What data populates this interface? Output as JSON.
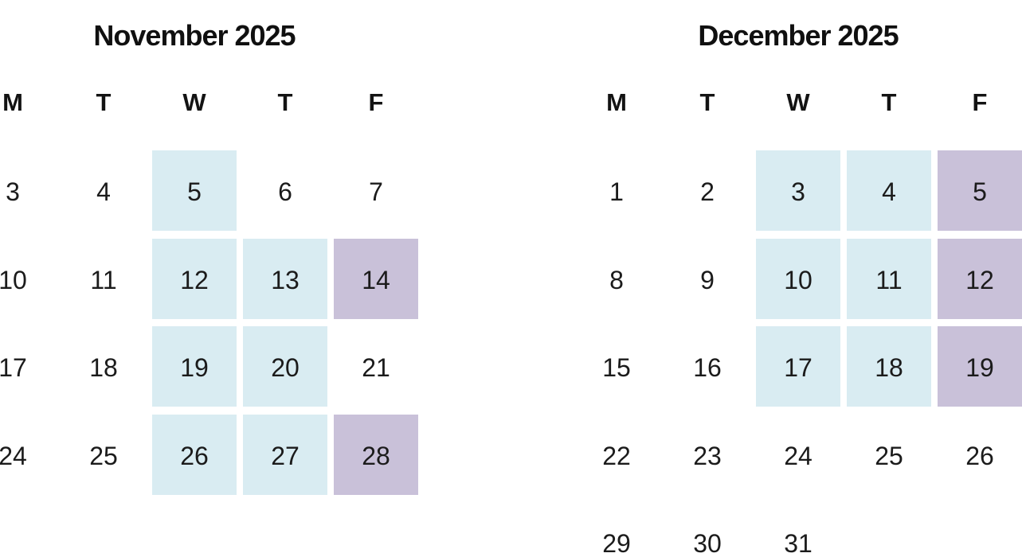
{
  "document": {
    "background": "#ffffff",
    "text_color": "#1b1b1b"
  },
  "highlight_colors": {
    "blue": "#d9ecf2",
    "purple": "#c9c1d9"
  },
  "calendars": [
    {
      "title": "November 2025",
      "weekdays": [
        "M",
        "T",
        "W",
        "T",
        "F"
      ],
      "weeks": [
        [
          {
            "day": "3",
            "highlight": "none"
          },
          {
            "day": "4",
            "highlight": "none"
          },
          {
            "day": "5",
            "highlight": "blue"
          },
          {
            "day": "6",
            "highlight": "none"
          },
          {
            "day": "7",
            "highlight": "none"
          }
        ],
        [
          {
            "day": "10",
            "highlight": "none"
          },
          {
            "day": "11",
            "highlight": "none"
          },
          {
            "day": "12",
            "highlight": "blue"
          },
          {
            "day": "13",
            "highlight": "blue"
          },
          {
            "day": "14",
            "highlight": "purple"
          }
        ],
        [
          {
            "day": "17",
            "highlight": "none"
          },
          {
            "day": "18",
            "highlight": "none"
          },
          {
            "day": "19",
            "highlight": "blue"
          },
          {
            "day": "20",
            "highlight": "blue"
          },
          {
            "day": "21",
            "highlight": "none"
          }
        ],
        [
          {
            "day": "24",
            "highlight": "none"
          },
          {
            "day": "25",
            "highlight": "none"
          },
          {
            "day": "26",
            "highlight": "blue"
          },
          {
            "day": "27",
            "highlight": "blue"
          },
          {
            "day": "28",
            "highlight": "purple"
          }
        ]
      ]
    },
    {
      "title": "December 2025",
      "weekdays": [
        "M",
        "T",
        "W",
        "T",
        "F"
      ],
      "weeks": [
        [
          {
            "day": "1",
            "highlight": "none"
          },
          {
            "day": "2",
            "highlight": "none"
          },
          {
            "day": "3",
            "highlight": "blue"
          },
          {
            "day": "4",
            "highlight": "blue"
          },
          {
            "day": "5",
            "highlight": "purple"
          }
        ],
        [
          {
            "day": "8",
            "highlight": "none"
          },
          {
            "day": "9",
            "highlight": "none"
          },
          {
            "day": "10",
            "highlight": "blue"
          },
          {
            "day": "11",
            "highlight": "blue"
          },
          {
            "day": "12",
            "highlight": "purple"
          }
        ],
        [
          {
            "day": "15",
            "highlight": "none"
          },
          {
            "day": "16",
            "highlight": "none"
          },
          {
            "day": "17",
            "highlight": "blue"
          },
          {
            "day": "18",
            "highlight": "blue"
          },
          {
            "day": "19",
            "highlight": "purple"
          }
        ],
        [
          {
            "day": "22",
            "highlight": "none"
          },
          {
            "day": "23",
            "highlight": "none"
          },
          {
            "day": "24",
            "highlight": "none"
          },
          {
            "day": "25",
            "highlight": "none"
          },
          {
            "day": "26",
            "highlight": "none"
          }
        ],
        [
          {
            "day": "29",
            "highlight": "none"
          },
          {
            "day": "30",
            "highlight": "none"
          },
          {
            "day": "31",
            "highlight": "none"
          },
          {
            "day": "",
            "highlight": "none"
          },
          {
            "day": "",
            "highlight": "none"
          }
        ]
      ]
    }
  ]
}
